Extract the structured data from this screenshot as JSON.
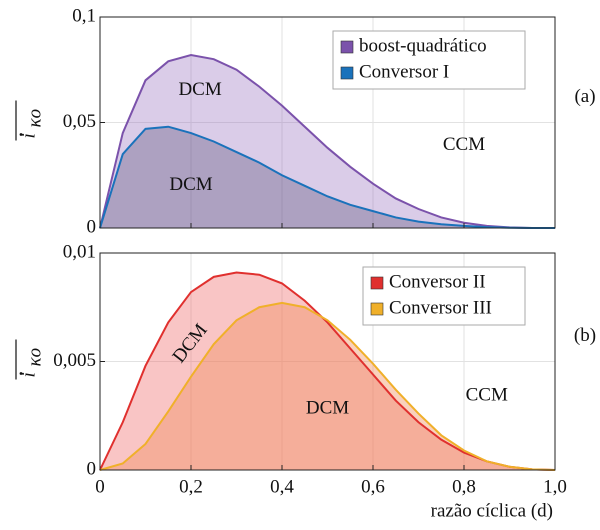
{
  "chart_data": [
    {
      "type": "line",
      "panel_label": "(a)",
      "ylabel": "i",
      "ylabel_sub": "κo",
      "x": [
        0,
        0.05,
        0.1,
        0.15,
        0.2,
        0.25,
        0.3,
        0.35,
        0.4,
        0.45,
        0.5,
        0.55,
        0.6,
        0.65,
        0.7,
        0.75,
        0.8,
        0.85,
        0.9,
        0.95,
        1.0
      ],
      "series": [
        {
          "name": "boost-quadrático",
          "color": "#7b52ab",
          "fill": "rgba(150,110,190,0.35)",
          "values": [
            0,
            0.045,
            0.07,
            0.079,
            0.082,
            0.08,
            0.075,
            0.067,
            0.058,
            0.048,
            0.038,
            0.029,
            0.021,
            0.014,
            0.009,
            0.005,
            0.0025,
            0.001,
            0.0003,
            0,
            0
          ]
        },
        {
          "name": "Conversor I",
          "color": "#1a72bb",
          "fill": "rgba(90,80,120,0.35)",
          "values": [
            0,
            0.035,
            0.047,
            0.048,
            0.045,
            0.041,
            0.036,
            0.031,
            0.025,
            0.02,
            0.015,
            0.011,
            0.008,
            0.005,
            0.003,
            0.0018,
            0.001,
            0.0004,
            0.0001,
            0,
            0
          ]
        }
      ],
      "xlim": [
        0,
        1.0
      ],
      "ylim": [
        0,
        0.1
      ],
      "yticks": [
        0,
        {
          "value": 0.05,
          "label": "0,05"
        },
        {
          "value": 0.1,
          "label": "0,1"
        }
      ],
      "annotations": [
        "DCM",
        "DCM",
        "CCM"
      ],
      "grid": true
    },
    {
      "type": "line",
      "panel_label": "(b)",
      "ylabel": "i",
      "ylabel_sub": "κo",
      "xlabel": "razão cíclica (d)",
      "x": [
        0,
        0.05,
        0.1,
        0.15,
        0.2,
        0.25,
        0.3,
        0.35,
        0.4,
        0.45,
        0.5,
        0.55,
        0.6,
        0.65,
        0.7,
        0.75,
        0.8,
        0.85,
        0.9,
        0.95,
        1.0
      ],
      "series": [
        {
          "name": "Conversor II",
          "color": "#e0302e",
          "fill": "rgba(240,110,110,0.4)",
          "values": [
            0,
            0.0022,
            0.0048,
            0.0068,
            0.0082,
            0.0089,
            0.0091,
            0.009,
            0.0086,
            0.0078,
            0.0068,
            0.0056,
            0.0044,
            0.0032,
            0.0022,
            0.0014,
            0.0008,
            0.0004,
            0.00015,
            3e-05,
            0
          ]
        },
        {
          "name": "Conversor III",
          "color": "#f0b02a",
          "fill": "rgba(240,140,90,0.4)",
          "values": [
            0,
            0.0003,
            0.0012,
            0.0027,
            0.0043,
            0.0058,
            0.0069,
            0.0075,
            0.0077,
            0.0075,
            0.0069,
            0.006,
            0.0049,
            0.0037,
            0.0026,
            0.0016,
            0.0009,
            0.0004,
            0.00015,
            3e-05,
            0
          ]
        }
      ],
      "xlim": [
        0,
        1.0
      ],
      "ylim": [
        0,
        0.01
      ],
      "xticks": [
        0,
        {
          "value": 0.2,
          "label": "0,2"
        },
        {
          "value": 0.4,
          "label": "0,4"
        },
        {
          "value": 0.6,
          "label": "0,6"
        },
        {
          "value": 0.8,
          "label": "0,8"
        },
        {
          "value": 1.0,
          "label": "1,0"
        }
      ],
      "yticks": [
        0,
        {
          "value": 0.005,
          "label": "0,005"
        },
        {
          "value": 0.01,
          "label": "0,01"
        }
      ],
      "annotations": [
        "DCM",
        "DCM",
        "CCM"
      ],
      "grid": true
    }
  ]
}
